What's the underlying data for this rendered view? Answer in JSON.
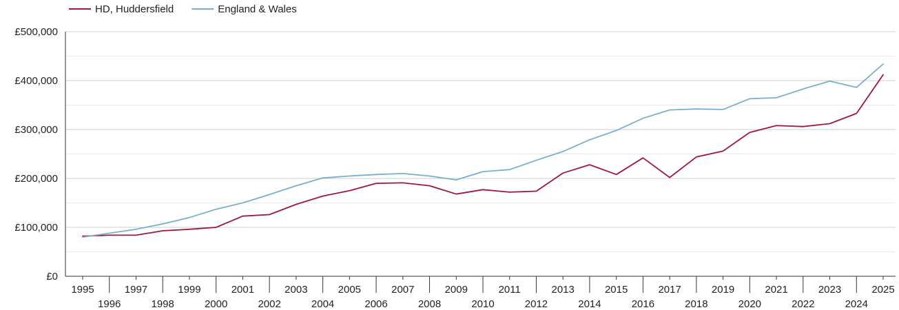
{
  "chart_data": {
    "type": "line",
    "title": "",
    "xlabel": "",
    "ylabel": "",
    "x": [
      1995,
      1996,
      1997,
      1998,
      1999,
      2000,
      2001,
      2002,
      2003,
      2004,
      2005,
      2006,
      2007,
      2008,
      2009,
      2010,
      2011,
      2012,
      2013,
      2014,
      2015,
      2016,
      2017,
      2018,
      2019,
      2020,
      2021,
      2022,
      2023,
      2024,
      2025
    ],
    "series": [
      {
        "name": "HD, Huddersfield",
        "color": "#a0153e",
        "values": [
          82000,
          84000,
          84000,
          93000,
          96000,
          100000,
          123000,
          126000,
          147000,
          164000,
          175000,
          190000,
          191000,
          185000,
          168000,
          177000,
          172000,
          174000,
          211000,
          228000,
          208000,
          242000,
          202000,
          244000,
          256000,
          294000,
          308000,
          306000,
          312000,
          333000,
          412000
        ]
      },
      {
        "name": "England & Wales",
        "color": "#7aaecb",
        "values": [
          80000,
          88000,
          96000,
          107000,
          120000,
          137000,
          150000,
          167000,
          185000,
          201000,
          205000,
          208000,
          210000,
          205000,
          197000,
          214000,
          218000,
          237000,
          255000,
          279000,
          298000,
          323000,
          340000,
          342000,
          341000,
          363000,
          365000,
          383000,
          399000,
          386000,
          434000
        ]
      }
    ],
    "y_ticks": [
      0,
      100000,
      200000,
      300000,
      400000,
      500000
    ],
    "y_tick_labels": [
      "£0",
      "£100,000",
      "£200,000",
      "£300,000",
      "£400,000",
      "£500,000"
    ],
    "ylim": [
      0,
      500000
    ],
    "xlim": [
      1995,
      2025
    ],
    "grid": true,
    "legend": "top-left"
  }
}
